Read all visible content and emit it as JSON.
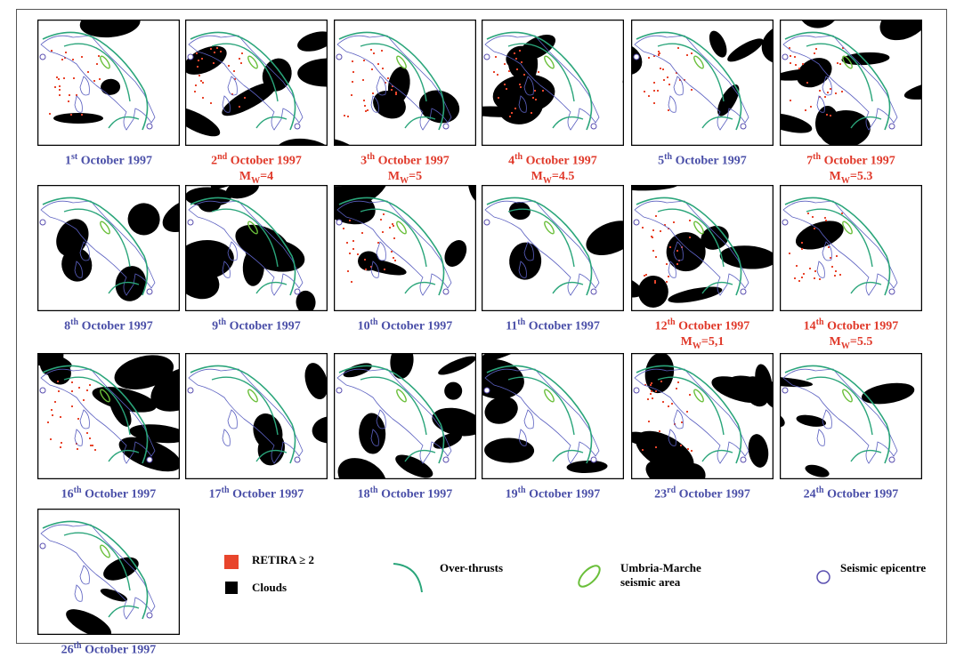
{
  "panels": [
    {
      "day": "1",
      "suffix": "st",
      "rest": "October 1997",
      "color": "#4a4fa8"
    },
    {
      "day": "2",
      "suffix": "nd",
      "rest": "October 1997",
      "color": "#e0392a",
      "mag": {
        "m": "M",
        "sub": "W",
        "val": "=4"
      }
    },
    {
      "day": "3",
      "suffix": "th",
      "rest": "October 1997",
      "color": "#e0392a",
      "mag": {
        "m": "M",
        "sub": "W",
        "val": "=5"
      }
    },
    {
      "day": "4",
      "suffix": "th",
      "rest": "October 1997",
      "color": "#e0392a",
      "mag": {
        "m": "M",
        "sub": "W",
        "val": "=4.5"
      }
    },
    {
      "day": "5",
      "suffix": "th",
      "rest": "October 1997",
      "color": "#4a4fa8"
    },
    {
      "day": "7",
      "suffix": "th",
      "rest": "October 1997",
      "color": "#e0392a",
      "mag": {
        "m": "M",
        "sub": "W",
        "val": "=5.3"
      }
    },
    {
      "day": "8",
      "suffix": "th",
      "rest": "October 1997",
      "color": "#4a4fa8"
    },
    {
      "day": "9",
      "suffix": "th",
      "rest": "October 1997",
      "color": "#4a4fa8"
    },
    {
      "day": "10",
      "suffix": "th",
      "rest": "October 1997",
      "color": "#4a4fa8"
    },
    {
      "day": "11",
      "suffix": "th",
      "rest": "October 1997",
      "color": "#4a4fa8"
    },
    {
      "day": "12",
      "suffix": "th",
      "rest": "October 1997",
      "color": "#e0392a",
      "mag": {
        "m": "M",
        "sub": "W",
        "val": "=5,1"
      }
    },
    {
      "day": "14",
      "suffix": "th",
      "rest": "October 1997",
      "color": "#e0392a",
      "mag": {
        "m": "M",
        "sub": "W",
        "val": "=5.5"
      }
    },
    {
      "day": "16",
      "suffix": "th",
      "rest": "October 1997",
      "color": "#4a4fa8"
    },
    {
      "day": "17",
      "suffix": "th",
      "rest": "October 1997",
      "color": "#4a4fa8"
    },
    {
      "day": "18",
      "suffix": "th",
      "rest": "October 1997",
      "color": "#4a4fa8"
    },
    {
      "day": "19",
      "suffix": "th",
      "rest": "October 1997",
      "color": "#4a4fa8"
    },
    {
      "day": "23",
      "suffix": "rd",
      "rest": "October 1997",
      "color": "#4a4fa8"
    },
    {
      "day": "24",
      "suffix": "th",
      "rest": "October 1997",
      "color": "#4a4fa8"
    },
    {
      "day": "26",
      "suffix": "th",
      "rest": "October 1997",
      "color": "#4a4fa8"
    }
  ],
  "legend": {
    "retira": "RETIRA ≥ 2",
    "clouds": "Clouds",
    "overthrusts": "Over-thrusts",
    "umbria": [
      "Umbria-Marche",
      "seismic area"
    ],
    "epicentre": "Seismic epicentre"
  }
}
